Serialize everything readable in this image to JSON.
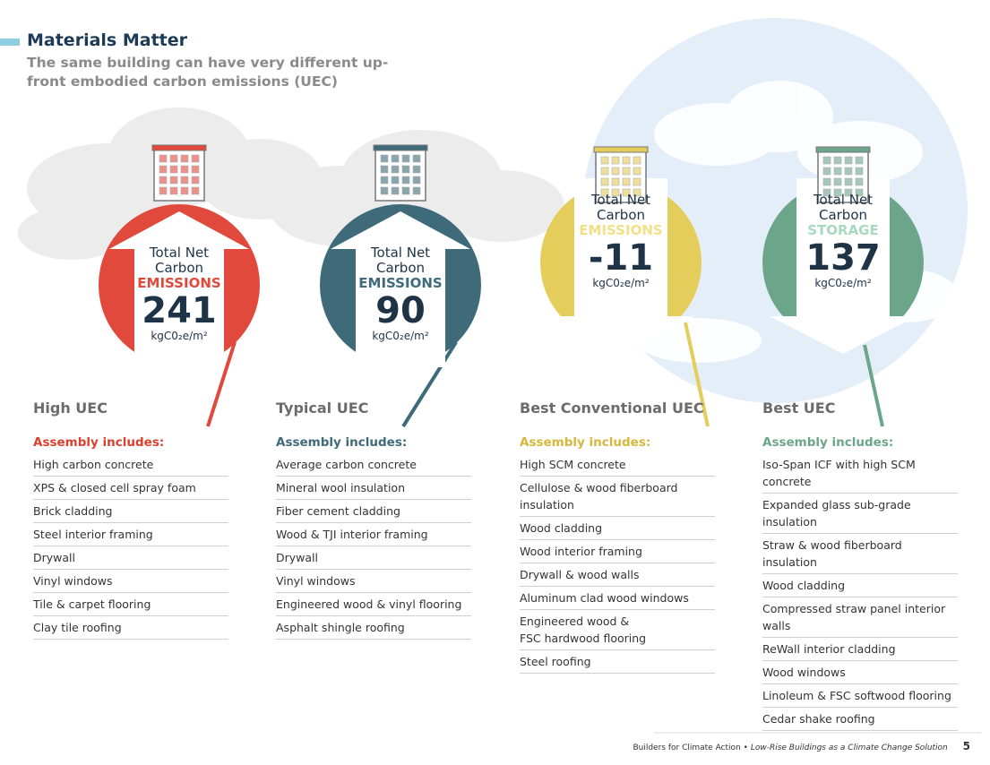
{
  "header": {
    "title": "Materials Matter",
    "subtitle": "The same building can have very different up-front embodied carbon emissions (UEC)"
  },
  "columns": [
    {
      "circle": {
        "line1": "Total Net",
        "line2": "Carbon",
        "kind": "EMISSIONS",
        "value": 241,
        "unit": "kgC0₂e/m²"
      },
      "heading": "High UEC",
      "assembly_heading": "Assembly includes:",
      "items": [
        "High carbon concrete",
        "XPS & closed cell spray foam",
        "Brick cladding",
        "Steel interior framing",
        "Drywall",
        "Vinyl windows",
        "Tile & carpet flooring",
        "Clay tile roofing"
      ]
    },
    {
      "circle": {
        "line1": "Total Net",
        "line2": "Carbon",
        "kind": "EMISSIONS",
        "value": 90,
        "unit": "kgC0₂e/m²"
      },
      "heading": "Typical UEC",
      "assembly_heading": "Assembly includes:",
      "items": [
        "Average carbon concrete",
        "Mineral wool insulation",
        "Fiber cement cladding",
        "Wood & TJI interior framing",
        "Drywall",
        "Vinyl windows",
        "Engineered wood & vinyl flooring",
        "Asphalt shingle roofing"
      ]
    },
    {
      "circle": {
        "line1": "Total Net",
        "line2": "Carbon",
        "kind": "EMISSIONS",
        "value": -11,
        "unit": "kgC0₂e/m²"
      },
      "heading": "Best Conventional UEC",
      "assembly_heading": "Assembly includes:",
      "items": [
        "High SCM concrete",
        "Cellulose & wood fiberboard insulation",
        "Wood cladding",
        "Wood interior framing",
        "Drywall & wood walls",
        "Aluminum clad wood windows",
        [
          "Engineered wood &",
          "FSC hardwood flooring"
        ],
        "Steel roofing"
      ]
    },
    {
      "circle": {
        "line1": "Total Net",
        "line2": "Carbon",
        "kind": "STORAGE",
        "value": 137,
        "unit": "kgC0₂e/m²"
      },
      "heading": "Best UEC",
      "assembly_heading": "Assembly includes:",
      "items": [
        "Iso-Span ICF with high SCM concrete",
        "Expanded glass sub-grade insulation",
        "Straw & wood fiberboard insulation",
        "Wood cladding",
        "Compressed straw panel interior walls",
        "ReWall interior cladding",
        "Wood windows",
        "Linoleum & FSC softwood flooring",
        "Cedar shake roofing"
      ]
    }
  ],
  "footer": {
    "left": "Builders for Climate Action",
    "separator": "•",
    "right": "Low-Rise Buildings as a Climate Change Solution",
    "page": 5
  }
}
